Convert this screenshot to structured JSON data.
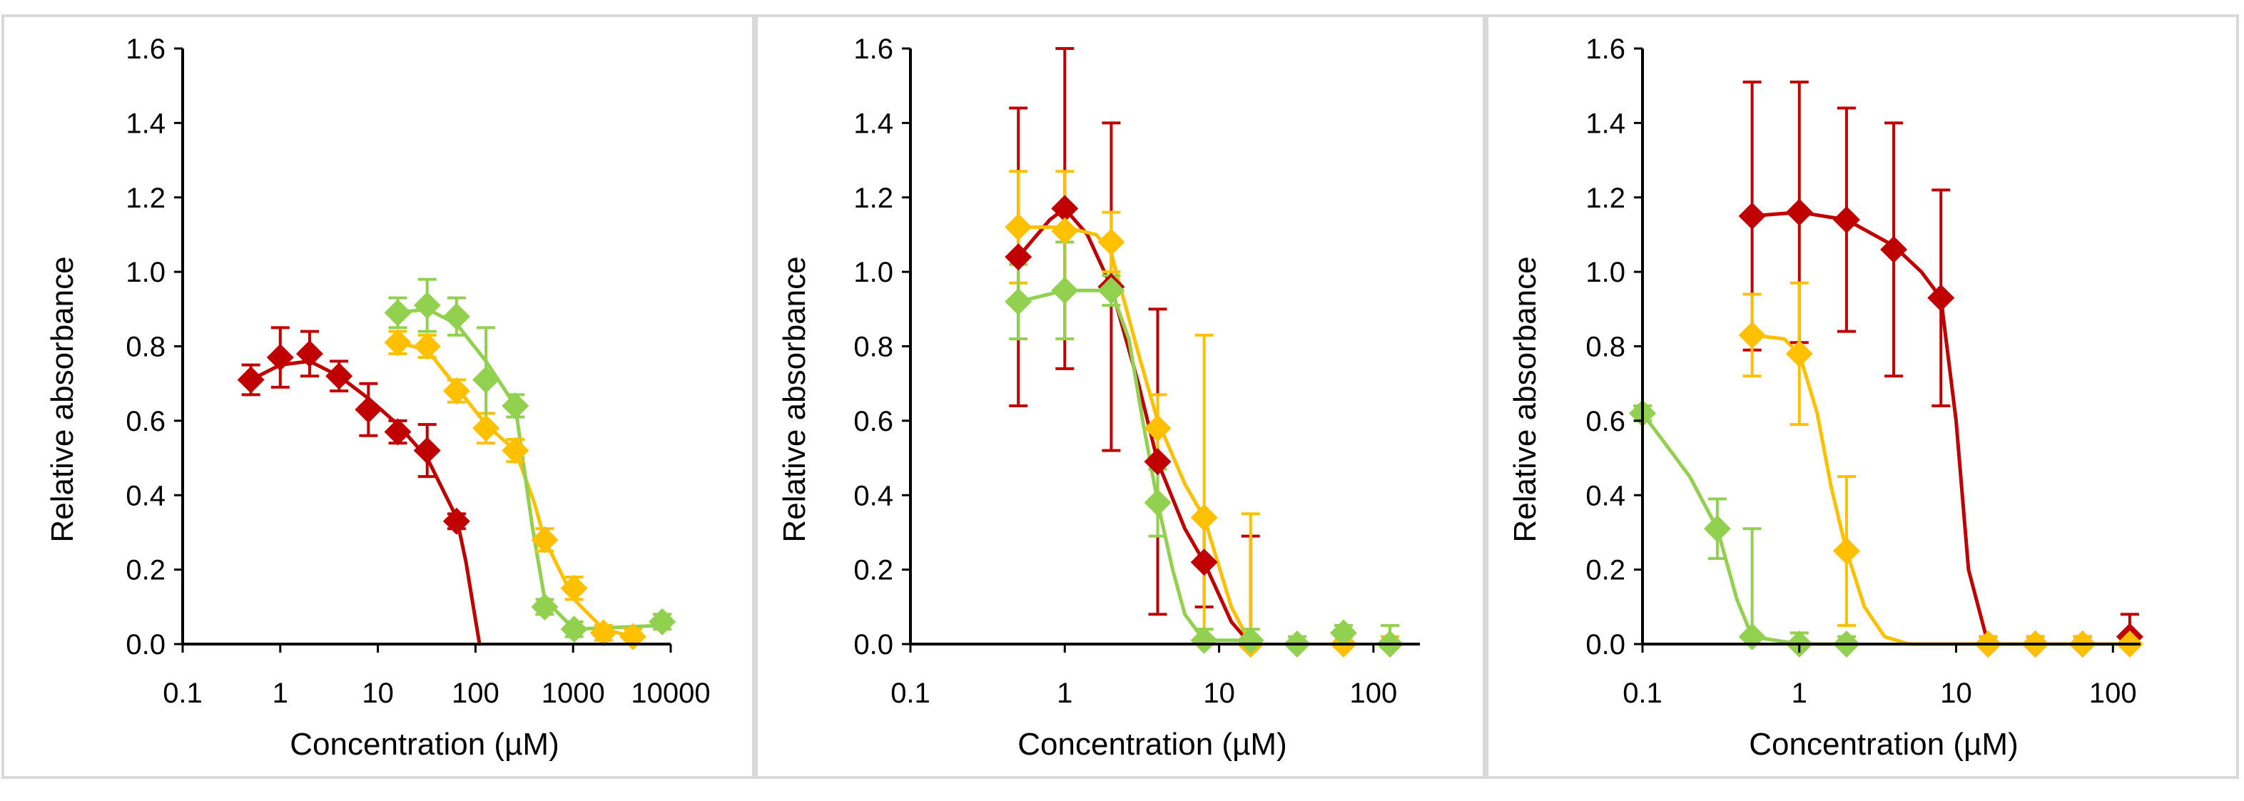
{
  "colors": {
    "red": "#c00000",
    "orange": "#ffc000",
    "green": "#92d050",
    "axis": "#000000",
    "frame": "#d9d9d9"
  },
  "chart_data": [
    {
      "type": "scatter",
      "xscale": "log",
      "title": "",
      "xlabel": "Concentration (µM)",
      "ylabel": "Relative absorbance",
      "xlim": [
        0.1,
        10000
      ],
      "ylim": [
        0,
        1.6
      ],
      "xticks": [
        0.1,
        1,
        10,
        100,
        1000,
        10000
      ],
      "xtick_labels": [
        "0.1",
        "1",
        "10",
        "100",
        "1000",
        "10000"
      ],
      "yticks": [
        0,
        0.2,
        0.4,
        0.6,
        0.8,
        1.0,
        1.2,
        1.4,
        1.6
      ],
      "ytick_labels": [
        "0.0",
        "0.2",
        "0.4",
        "0.6",
        "0.8",
        "1.0",
        "1.2",
        "1.4",
        "1.6"
      ],
      "series": [
        {
          "name": "red",
          "color_key": "red",
          "x": [
            0.5,
            1,
            2,
            4,
            8,
            16,
            32,
            64
          ],
          "y": [
            0.71,
            0.77,
            0.78,
            0.72,
            0.63,
            0.57,
            0.52,
            0.33
          ],
          "err": [
            0.04,
            0.08,
            0.06,
            0.04,
            0.07,
            0.03,
            0.07,
            0.02
          ],
          "fit": {
            "x": [
              0.5,
              1,
              2,
              4,
              8,
              16,
              32,
              64,
              80,
              95,
              110
            ],
            "y": [
              0.71,
              0.75,
              0.76,
              0.72,
              0.66,
              0.59,
              0.5,
              0.34,
              0.22,
              0.1,
              0
            ]
          }
        },
        {
          "name": "orange",
          "color_key": "orange",
          "x": [
            16,
            32,
            64,
            128,
            256,
            512,
            1024,
            2048,
            4096
          ],
          "y": [
            0.81,
            0.8,
            0.68,
            0.58,
            0.52,
            0.28,
            0.15,
            0.03,
            0.02
          ],
          "err": [
            0.03,
            0.03,
            0.03,
            0.04,
            0.03,
            0.03,
            0.03,
            0.02,
            0.02
          ],
          "fit": {
            "x": [
              16,
              32,
              64,
              128,
              256,
              400,
              512,
              1024,
              2048,
              4096
            ],
            "y": [
              0.81,
              0.79,
              0.69,
              0.59,
              0.52,
              0.38,
              0.28,
              0.12,
              0.04,
              0.02
            ]
          }
        },
        {
          "name": "green",
          "color_key": "green",
          "x": [
            16,
            32,
            64,
            128,
            256,
            512,
            1024,
            8192
          ],
          "y": [
            0.89,
            0.91,
            0.88,
            0.71,
            0.64,
            0.1,
            0.04,
            0.06
          ],
          "err": [
            0.04,
            0.07,
            0.05,
            0.14,
            0.03,
            0.02,
            0.02,
            0.02
          ],
          "fit": {
            "x": [
              16,
              32,
              64,
              128,
              256,
              380,
              512,
              1024,
              8192
            ],
            "y": [
              0.89,
              0.9,
              0.86,
              0.76,
              0.64,
              0.32,
              0.12,
              0.04,
              0.05
            ]
          }
        }
      ]
    },
    {
      "type": "scatter",
      "xscale": "log",
      "title": "",
      "xlabel": "Concentration (µM)",
      "ylabel": "Relative absorbance",
      "xlim": [
        0.1,
        200
      ],
      "ylim": [
        0,
        1.6
      ],
      "xticks": [
        0.1,
        1,
        10,
        100
      ],
      "xtick_labels": [
        "0.1",
        "1",
        "10",
        "100"
      ],
      "yticks": [
        0,
        0.2,
        0.4,
        0.6,
        0.8,
        1.0,
        1.2,
        1.4,
        1.6
      ],
      "ytick_labels": [
        "0.0",
        "0.2",
        "0.4",
        "0.6",
        "0.8",
        "1.0",
        "1.2",
        "1.4",
        "1.6"
      ],
      "series": [
        {
          "name": "red",
          "color_key": "red",
          "x": [
            0.5,
            1,
            2,
            4,
            8,
            16
          ],
          "y": [
            1.04,
            1.17,
            0.96,
            0.49,
            0.22,
            0.0
          ],
          "err": [
            0.4,
            0.43,
            0.44,
            0.41,
            0.12,
            0.29
          ],
          "fit": {
            "x": [
              0.5,
              0.8,
              1,
              1.4,
              2,
              3,
              4,
              6,
              8,
              12,
              16
            ],
            "y": [
              1.04,
              1.14,
              1.17,
              1.1,
              0.96,
              0.7,
              0.49,
              0.31,
              0.22,
              0.06,
              0.0
            ]
          }
        },
        {
          "name": "orange",
          "color_key": "orange",
          "x": [
            0.5,
            1,
            2,
            4,
            8,
            16,
            64,
            128
          ],
          "y": [
            1.12,
            1.11,
            1.08,
            0.58,
            0.34,
            0.0,
            0.0,
            0.0
          ],
          "err": [
            0.15,
            0.16,
            0.08,
            0.09,
            0.49,
            0.35,
            0.02,
            0.02
          ],
          "fit": {
            "x": [
              0.5,
              1,
              1.6,
              2,
              3,
              4,
              6,
              8,
              12,
              16
            ],
            "y": [
              1.12,
              1.12,
              1.1,
              1.05,
              0.78,
              0.6,
              0.43,
              0.34,
              0.1,
              0.0
            ]
          }
        },
        {
          "name": "green",
          "color_key": "green",
          "x": [
            0.5,
            1,
            2,
            4,
            8,
            16,
            32,
            64,
            128
          ],
          "y": [
            0.92,
            0.95,
            0.95,
            0.38,
            0.01,
            0.01,
            0.0,
            0.03,
            0.0
          ],
          "err": [
            0.1,
            0.13,
            0.04,
            0.09,
            0.03,
            0.03,
            0.02,
            0.02,
            0.05
          ],
          "fit": {
            "x": [
              0.5,
              1,
              2,
              2.6,
              3.2,
              4,
              5,
              6,
              8,
              16
            ],
            "y": [
              0.92,
              0.95,
              0.95,
              0.82,
              0.6,
              0.38,
              0.2,
              0.08,
              0.01,
              0.01
            ]
          }
        }
      ]
    },
    {
      "type": "scatter",
      "xscale": "log",
      "title": "",
      "xlabel": "Concentration (µM)",
      "ylabel": "Relative absorbance",
      "xlim": [
        0.1,
        150
      ],
      "ylim": [
        0,
        1.6
      ],
      "xticks": [
        0.1,
        1,
        10,
        100
      ],
      "xtick_labels": [
        "0.1",
        "1",
        "10",
        "100"
      ],
      "yticks": [
        0,
        0.2,
        0.4,
        0.6,
        0.8,
        1.0,
        1.2,
        1.4,
        1.6
      ],
      "ytick_labels": [
        "0.0",
        "0.2",
        "0.4",
        "0.6",
        "0.8",
        "1.0",
        "1.2",
        "1.4",
        "1.6"
      ],
      "series": [
        {
          "name": "red",
          "color_key": "red",
          "x": [
            0.5,
            1,
            2,
            4,
            8,
            16,
            32,
            64,
            128
          ],
          "y": [
            1.15,
            1.16,
            1.14,
            1.06,
            0.93,
            0.0,
            0.0,
            0.0,
            0.02
          ],
          "err": [
            0.36,
            0.35,
            0.3,
            0.34,
            0.29,
            0.02,
            0.02,
            0.02,
            0.06
          ],
          "fit": {
            "x": [
              0.5,
              1,
              2,
              4,
              6,
              8,
              10,
              12,
              16,
              32,
              64,
              128
            ],
            "y": [
              1.15,
              1.16,
              1.14,
              1.07,
              1.0,
              0.93,
              0.6,
              0.2,
              0.0,
              0.0,
              0.0,
              0.0
            ]
          }
        },
        {
          "name": "orange",
          "color_key": "orange",
          "x": [
            0.5,
            1,
            2,
            16,
            32,
            64,
            128
          ],
          "y": [
            0.83,
            0.78,
            0.25,
            0.0,
            0.0,
            0.0,
            0.0
          ],
          "err": [
            0.11,
            0.19,
            0.2,
            0.02,
            0.02,
            0.02,
            0.02
          ],
          "fit": {
            "x": [
              0.5,
              0.8,
              1,
              1.3,
              1.6,
              2,
              2.6,
              3.5,
              5,
              8,
              16,
              128
            ],
            "y": [
              0.83,
              0.82,
              0.78,
              0.62,
              0.42,
              0.25,
              0.1,
              0.02,
              0.0,
              0.0,
              0.0,
              0.0
            ]
          }
        },
        {
          "name": "green",
          "color_key": "green",
          "x": [
            0.1,
            0.3,
            0.5,
            1,
            2
          ],
          "y": [
            0.62,
            0.31,
            0.02,
            0.0,
            0.0
          ],
          "err": [
            0.02,
            0.08,
            0.29,
            0.03,
            0.02
          ],
          "fit": {
            "x": [
              0.1,
              0.2,
              0.3,
              0.4,
              0.5,
              1,
              2
            ],
            "y": [
              0.62,
              0.45,
              0.31,
              0.12,
              0.02,
              0.0,
              0.0
            ]
          }
        }
      ]
    }
  ]
}
